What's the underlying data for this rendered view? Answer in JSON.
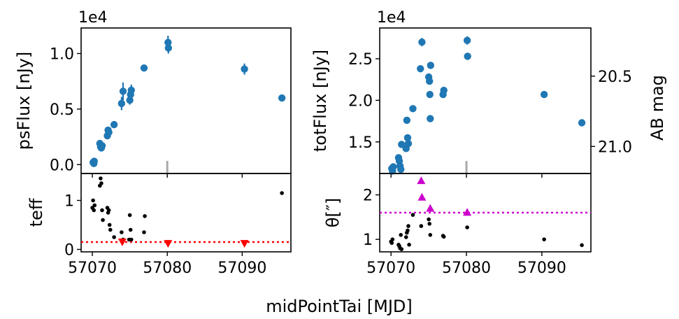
{
  "figure": {
    "shared_xlabel": "midPointTai [MJD]"
  },
  "chart_data": [
    {
      "id": "psflux",
      "type": "scatter",
      "ylabel": "psFlux [nJy]",
      "offset_text": "1e4",
      "xlim": [
        57068.5,
        57096.5
      ],
      "ylim": [
        -0.08,
        1.23
      ],
      "yticks": [
        0.0,
        0.5,
        1.0
      ],
      "ytick_labels": [
        "0.0",
        "0.5",
        "1.0"
      ],
      "series": [
        {
          "color": "#1f77b4",
          "marker": "circle-errorbar",
          "points": [
            {
              "x": 57070.1,
              "y": 0.02,
              "err": 0.03
            },
            {
              "x": 57070.2,
              "y": 0.01,
              "err": 0.03
            },
            {
              "x": 57070.25,
              "y": 0.03,
              "err": 0.03
            },
            {
              "x": 57071.0,
              "y": 0.19,
              "err": 0.03
            },
            {
              "x": 57071.1,
              "y": 0.16,
              "err": 0.03
            },
            {
              "x": 57071.2,
              "y": 0.15,
              "err": 0.03
            },
            {
              "x": 57071.3,
              "y": 0.17,
              "err": 0.03
            },
            {
              "x": 57072.0,
              "y": 0.26,
              "err": 0.03
            },
            {
              "x": 57072.1,
              "y": 0.31,
              "err": 0.03
            },
            {
              "x": 57072.2,
              "y": 0.29,
              "err": 0.03
            },
            {
              "x": 57072.9,
              "y": 0.36,
              "err": 0.03
            },
            {
              "x": 57073.9,
              "y": 0.55,
              "err": 0.06
            },
            {
              "x": 57074.1,
              "y": 0.66,
              "err": 0.08
            },
            {
              "x": 57075.0,
              "y": 0.58,
              "err": 0.04
            },
            {
              "x": 57075.1,
              "y": 0.63,
              "err": 0.04
            },
            {
              "x": 57075.2,
              "y": 0.67,
              "err": 0.05
            },
            {
              "x": 57076.9,
              "y": 0.87,
              "err": 0.03
            },
            {
              "x": 57080.1,
              "y": 1.1,
              "err": 0.06
            },
            {
              "x": 57080.15,
              "y": 1.05,
              "err": 0.05
            },
            {
              "x": 57090.3,
              "y": 0.86,
              "err": 0.05
            },
            {
              "x": 57095.3,
              "y": 0.6,
              "err": 0.03
            }
          ]
        }
      ],
      "grey_ticks": [
        57080.0
      ]
    },
    {
      "id": "teff",
      "type": "scatter",
      "ylabel": "teff",
      "xlim": [
        57068.5,
        57096.5
      ],
      "ylim": [
        -0.05,
        1.55
      ],
      "yticks": [
        0,
        1
      ],
      "ytick_labels": [
        "0",
        "1"
      ],
      "xticks": [
        57070,
        57080,
        57090
      ],
      "xtick_labels": [
        "57070",
        "57080",
        "57090"
      ],
      "threshold": 0.15,
      "threshold_color": "#ff0000",
      "series": [
        {
          "color": "#000000",
          "marker": "dot",
          "points": [
            {
              "x": 57070.0,
              "y": 0.85
            },
            {
              "x": 57070.1,
              "y": 1.0
            },
            {
              "x": 57070.2,
              "y": 0.8
            },
            {
              "x": 57070.3,
              "y": 0.9
            },
            {
              "x": 57071.0,
              "y": 1.3
            },
            {
              "x": 57071.1,
              "y": 1.45
            },
            {
              "x": 57071.2,
              "y": 1.35
            },
            {
              "x": 57071.3,
              "y": 0.8
            },
            {
              "x": 57071.4,
              "y": 0.6
            },
            {
              "x": 57072.0,
              "y": 0.85
            },
            {
              "x": 57072.1,
              "y": 0.75
            },
            {
              "x": 57072.2,
              "y": 0.8
            },
            {
              "x": 57072.3,
              "y": 0.5
            },
            {
              "x": 57072.4,
              "y": 0.4
            },
            {
              "x": 57072.9,
              "y": 0.25
            },
            {
              "x": 57073.9,
              "y": 0.35
            },
            {
              "x": 57074.1,
              "y": 0.2
            },
            {
              "x": 57074.9,
              "y": 0.2
            },
            {
              "x": 57075.0,
              "y": 0.7
            },
            {
              "x": 57075.1,
              "y": 0.4
            },
            {
              "x": 57075.2,
              "y": 0.2
            },
            {
              "x": 57076.9,
              "y": 0.35
            },
            {
              "x": 57077.0,
              "y": 0.68
            },
            {
              "x": 57095.3,
              "y": 1.15
            }
          ]
        },
        {
          "color": "#ff0000",
          "marker": "triangle-down",
          "points": [
            {
              "x": 57074.0,
              "y": 0.15
            },
            {
              "x": 57080.1,
              "y": 0.12
            },
            {
              "x": 57090.3,
              "y": 0.12
            }
          ]
        }
      ]
    },
    {
      "id": "totflux",
      "type": "scatter",
      "ylabel": "totFlux [nJy]",
      "offset_text": "1e4",
      "xlim": [
        57068.5,
        57096.5
      ],
      "ylim": [
        1.12,
        2.87
      ],
      "yticks": [
        1.5,
        2.0,
        2.5
      ],
      "ytick_labels": [
        "1.5",
        "2.0",
        "2.5"
      ],
      "secondary_ylabel": "AB mag",
      "secondary_yticks": [
        20.5,
        21.0
      ],
      "secondary_ytick_labels": [
        "20.5",
        "21.0"
      ],
      "series": [
        {
          "color": "#1f77b4",
          "marker": "circle-errorbar",
          "points": [
            {
              "x": 57070.1,
              "y": 1.18,
              "err": 0.03
            },
            {
              "x": 57070.2,
              "y": 1.15,
              "err": 0.03
            },
            {
              "x": 57070.3,
              "y": 1.2,
              "err": 0.03
            },
            {
              "x": 57071.0,
              "y": 1.31,
              "err": 0.03
            },
            {
              "x": 57071.1,
              "y": 1.27,
              "err": 0.03
            },
            {
              "x": 57071.2,
              "y": 1.21,
              "err": 0.03
            },
            {
              "x": 57071.3,
              "y": 1.17,
              "err": 0.03
            },
            {
              "x": 57071.4,
              "y": 1.47,
              "err": 0.03
            },
            {
              "x": 57072.0,
              "y": 1.42,
              "err": 0.03
            },
            {
              "x": 57072.1,
              "y": 1.76,
              "err": 0.03
            },
            {
              "x": 57072.2,
              "y": 1.55,
              "err": 0.03
            },
            {
              "x": 57072.3,
              "y": 1.48,
              "err": 0.03
            },
            {
              "x": 57072.9,
              "y": 1.9,
              "err": 0.03
            },
            {
              "x": 57073.9,
              "y": 2.38,
              "err": 0.03
            },
            {
              "x": 57074.1,
              "y": 2.7,
              "err": 0.05
            },
            {
              "x": 57075.0,
              "y": 2.28,
              "err": 0.03
            },
            {
              "x": 57075.1,
              "y": 2.23,
              "err": 0.03
            },
            {
              "x": 57075.15,
              "y": 2.07,
              "err": 0.03
            },
            {
              "x": 57075.2,
              "y": 1.78,
              "err": 0.03
            },
            {
              "x": 57075.25,
              "y": 2.42,
              "err": 0.03
            },
            {
              "x": 57076.9,
              "y": 2.07,
              "err": 0.03
            },
            {
              "x": 57077.0,
              "y": 2.12,
              "err": 0.03
            },
            {
              "x": 57080.1,
              "y": 2.72,
              "err": 0.05
            },
            {
              "x": 57080.15,
              "y": 2.53,
              "err": 0.03
            },
            {
              "x": 57090.3,
              "y": 2.07,
              "err": 0.03
            },
            {
              "x": 57095.3,
              "y": 1.73,
              "err": 0.03
            }
          ]
        }
      ],
      "grey_ticks": [
        57080.0
      ]
    },
    {
      "id": "theta",
      "type": "scatter",
      "ylabel": "θ[″]",
      "xlim": [
        57068.5,
        57096.5
      ],
      "ylim": [
        0.72,
        2.48
      ],
      "yticks": [
        1,
        2
      ],
      "ytick_labels": [
        "1",
        "2"
      ],
      "xticks": [
        57070,
        57080,
        57090
      ],
      "xtick_labels": [
        "57070",
        "57080",
        "57090"
      ],
      "threshold": 1.6,
      "threshold_color": "#cc00cc",
      "series": [
        {
          "color": "#000000",
          "marker": "dot",
          "points": [
            {
              "x": 57070.0,
              "y": 0.95
            },
            {
              "x": 57070.1,
              "y": 0.92
            },
            {
              "x": 57070.2,
              "y": 1.0
            },
            {
              "x": 57071.0,
              "y": 0.88
            },
            {
              "x": 57071.1,
              "y": 0.85
            },
            {
              "x": 57071.2,
              "y": 0.8
            },
            {
              "x": 57071.3,
              "y": 1.1
            },
            {
              "x": 57071.4,
              "y": 0.78
            },
            {
              "x": 57072.0,
              "y": 1.05
            },
            {
              "x": 57072.1,
              "y": 1.15
            },
            {
              "x": 57072.2,
              "y": 1.2
            },
            {
              "x": 57072.3,
              "y": 1.3
            },
            {
              "x": 57072.4,
              "y": 0.88
            },
            {
              "x": 57072.9,
              "y": 1.55
            },
            {
              "x": 57074.0,
              "y": 1.3
            },
            {
              "x": 57075.0,
              "y": 1.45
            },
            {
              "x": 57075.1,
              "y": 1.35
            },
            {
              "x": 57075.2,
              "y": 1.1
            },
            {
              "x": 57076.9,
              "y": 1.08
            },
            {
              "x": 57077.0,
              "y": 1.06
            },
            {
              "x": 57080.1,
              "y": 1.27
            },
            {
              "x": 57090.3,
              "y": 1.0
            },
            {
              "x": 57095.3,
              "y": 0.87
            }
          ]
        },
        {
          "color": "#cc00cc",
          "marker": "triangle-up",
          "points": [
            {
              "x": 57074.0,
              "y": 2.32
            },
            {
              "x": 57074.1,
              "y": 1.95
            },
            {
              "x": 57075.2,
              "y": 1.7
            },
            {
              "x": 57080.1,
              "y": 1.61
            }
          ]
        }
      ]
    }
  ]
}
